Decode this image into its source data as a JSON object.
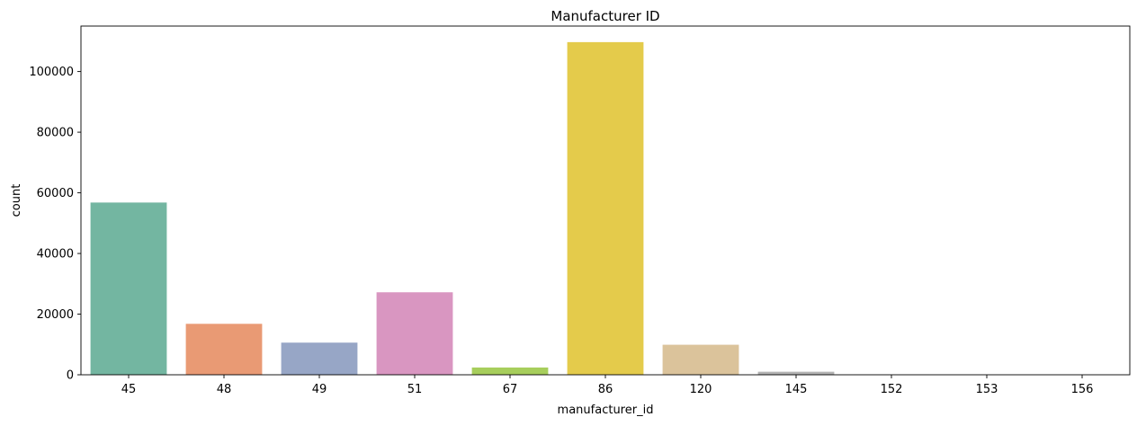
{
  "chart_data": {
    "type": "bar",
    "title": "Manufacturer ID",
    "xlabel": "manufacturer_id",
    "ylabel": "count",
    "categories": [
      "45",
      "48",
      "49",
      "51",
      "67",
      "86",
      "120",
      "145",
      "152",
      "153",
      "156"
    ],
    "values": [
      56800,
      16800,
      10600,
      27200,
      2400,
      109700,
      9900,
      1000,
      40,
      20,
      15
    ],
    "colors": [
      "#73b6a1",
      "#e99a74",
      "#97a6c6",
      "#d996c1",
      "#a7ce5c",
      "#e4cb4b",
      "#dbc39b",
      "#b3b3b3",
      "#b3b3b3",
      "#b3b3b3",
      "#b3b3b3"
    ],
    "ylim": [
      0,
      115000
    ],
    "yticks": [
      0,
      20000,
      40000,
      60000,
      80000,
      100000
    ],
    "grid": false,
    "legend": "none"
  }
}
